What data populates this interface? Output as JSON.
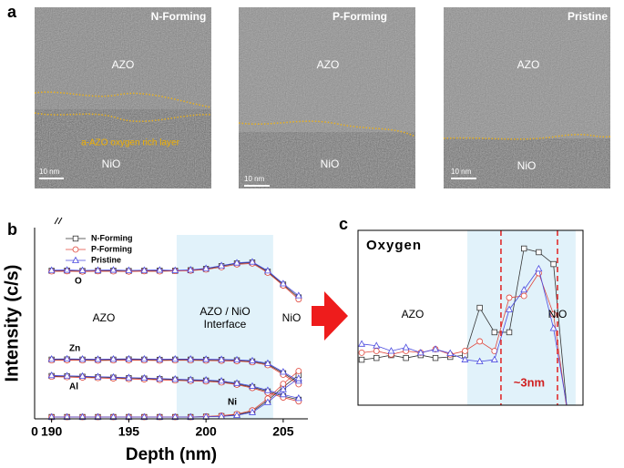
{
  "panel_a": {
    "label": "a",
    "images": [
      {
        "title": "N-Forming",
        "top_layer": "AZO",
        "bottom_layer": "NiO",
        "scale": "10 nm",
        "note": "a-AZO oxygen rich layer"
      },
      {
        "title": "P-Forming",
        "top_layer": "AZO",
        "bottom_layer": "NiO",
        "scale": "10 nm"
      },
      {
        "title": "Pristine",
        "top_layer": "AZO",
        "bottom_layer": "NiO",
        "scale": "10 nm"
      }
    ]
  },
  "chart_data": [
    {
      "type": "line",
      "panel": "b",
      "ylabel": "Intensity (c/s)",
      "xlabel": "Depth (nm)",
      "xlim": [
        188.9,
        206.6
      ],
      "ylim": [
        0,
        100
      ],
      "xticks": [
        190,
        195,
        200,
        205
      ],
      "xbreak_label": 0,
      "shade": [
        198.1,
        204.35
      ],
      "annotations": [
        "AZO",
        "AZO / NiO",
        "Interface",
        "NiO"
      ],
      "elements": [
        "O",
        "Zn",
        "Al",
        "Ni"
      ],
      "x": [
        190,
        191,
        192,
        193,
        194,
        195,
        196,
        197,
        198,
        199,
        200,
        201,
        202,
        203,
        204,
        205,
        206
      ],
      "series": [
        {
          "name": "N-Forming",
          "color": "#333333",
          "marker": "square",
          "values": [
            [
              80.5,
              80.6,
              80.4,
              80.5,
              80.6,
              80.4,
              80.5,
              80.6,
              80.5,
              80.8,
              81.5,
              83,
              84.5,
              85,
              80,
              73,
              66
            ],
            [
              32.2,
              32.3,
              32.2,
              32.1,
              32.2,
              32.3,
              32.2,
              32.1,
              32.2,
              32.2,
              32.1,
              32,
              31.8,
              31.2,
              29.7,
              24.8,
              19.8
            ],
            [
              23.3,
              23.1,
              22.9,
              22.6,
              22.4,
              22.1,
              21.9,
              21.6,
              21.3,
              21,
              20.8,
              20.2,
              19,
              17.3,
              14.9,
              12.4,
              10.4
            ],
            [
              1,
              1,
              1,
              1,
              1,
              1,
              1,
              1,
              1,
              1,
              1.2,
              1.5,
              2.2,
              4,
              10,
              17.3,
              23.8
            ]
          ]
        },
        {
          "name": "P-Forming",
          "color": "#e0453a",
          "marker": "circle",
          "values": [
            [
              80.2,
              80.3,
              80.1,
              80.3,
              80.2,
              80.1,
              80.3,
              80.2,
              80.4,
              80.6,
              81.2,
              82.5,
              84,
              84.5,
              79.5,
              72.5,
              65
            ],
            [
              31.8,
              31.9,
              31.8,
              31.7,
              31.8,
              31.9,
              31.8,
              31.7,
              31.8,
              31.8,
              31.7,
              31.6,
              31.4,
              30.8,
              29.2,
              24,
              18.8
            ],
            [
              22.9,
              22.7,
              22.5,
              22.2,
              22,
              21.7,
              21.5,
              21.2,
              20.9,
              20.6,
              20.4,
              19.8,
              18.6,
              16.8,
              14.2,
              11.6,
              9.5
            ],
            [
              1,
              1,
              1,
              1,
              1,
              1,
              1,
              1,
              1,
              1,
              1.3,
              1.7,
              2.6,
              4.6,
              11,
              19,
              26
            ]
          ]
        },
        {
          "name": "Pristine",
          "color": "#4a4adf",
          "marker": "triangle",
          "values": [
            [
              80.8,
              80.9,
              80.7,
              80.8,
              80.9,
              80.7,
              80.8,
              80.9,
              80.7,
              81,
              81.8,
              83.3,
              84.8,
              85.3,
              80.5,
              73.5,
              67
            ],
            [
              32.5,
              32.6,
              32.5,
              32.4,
              32.5,
              32.6,
              32.5,
              32.4,
              32.5,
              32.5,
              32.4,
              32.3,
              32.1,
              31.6,
              30.2,
              25.5,
              20.6
            ],
            [
              23.6,
              23.4,
              23.2,
              22.9,
              22.7,
              22.4,
              22.2,
              21.9,
              21.6,
              21.3,
              21.1,
              20.6,
              19.4,
              17.8,
              15.5,
              13.2,
              11.2
            ],
            [
              1,
              1,
              1,
              1,
              1,
              1,
              1,
              1,
              1,
              1,
              1.1,
              1.3,
              1.9,
              3.5,
              9,
              16,
              22
            ]
          ]
        }
      ]
    },
    {
      "type": "line",
      "panel": "c",
      "title": "Oxygen",
      "xlim": [
        -0.25,
        15
      ],
      "ylim": [
        0,
        100
      ],
      "shade": [
        7.16,
        14.5
      ],
      "markers": [
        9.44,
        13.27
      ],
      "width_label": "~3nm",
      "annotations": [
        "AZO",
        "NiO"
      ],
      "x": [
        0,
        1,
        2,
        3,
        4,
        5,
        6,
        7,
        8,
        9,
        10,
        11,
        12,
        13,
        14
      ],
      "series": [
        {
          "name": "N-Forming",
          "color": "#333333",
          "marker": "square",
          "values": [
            26,
            27,
            28.6,
            27,
            28.6,
            27,
            27.6,
            28.6,
            55.7,
            41.7,
            41.7,
            89.6,
            87.5,
            80.7,
            -10
          ]
        },
        {
          "name": "P-Forming",
          "color": "#e0453a",
          "marker": "circle",
          "values": [
            30,
            31,
            29,
            31,
            30,
            32,
            29,
            31,
            36.5,
            31,
            61.5,
            62.5,
            75.5,
            52,
            -8
          ]
        },
        {
          "name": "Pristine",
          "color": "#4a4adf",
          "marker": "triangle",
          "values": [
            35,
            34,
            31,
            33,
            30,
            32,
            29.7,
            26,
            25,
            26,
            54.7,
            66,
            78,
            44,
            -5
          ]
        }
      ]
    }
  ]
}
